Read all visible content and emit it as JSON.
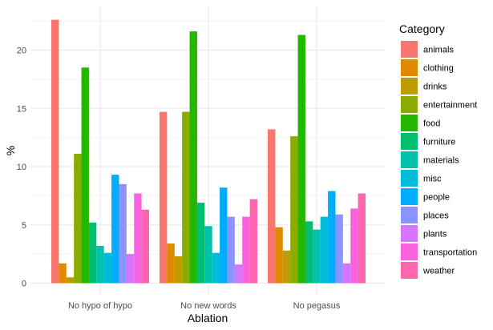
{
  "chart_data": {
    "type": "bar",
    "xlabel": "Ablation",
    "ylabel": "%",
    "ylim": [
      0,
      24
    ],
    "yticks": [
      0,
      5,
      10,
      15,
      20
    ],
    "grid": true,
    "legend_title": "Category",
    "legend_position": "right",
    "categories": [
      "No hypo of hypo",
      "No new words",
      "No pegasus"
    ],
    "series": [
      {
        "name": "animals",
        "color": "#F8766D",
        "values": [
          22.6,
          14.7,
          13.2
        ]
      },
      {
        "name": "clothing",
        "color": "#E18A00",
        "values": [
          1.7,
          3.4,
          4.8
        ]
      },
      {
        "name": "drinks",
        "color": "#BE9C00",
        "values": [
          0.5,
          2.3,
          2.8
        ]
      },
      {
        "name": "entertainment",
        "color": "#8CAB00",
        "values": [
          11.1,
          14.7,
          12.6
        ]
      },
      {
        "name": "food",
        "color": "#24B700",
        "values": [
          18.5,
          21.6,
          21.3
        ]
      },
      {
        "name": "furniture",
        "color": "#00BE70",
        "values": [
          5.2,
          6.9,
          5.3
        ]
      },
      {
        "name": "materials",
        "color": "#00C1AB",
        "values": [
          3.2,
          4.9,
          4.6
        ]
      },
      {
        "name": "misc",
        "color": "#00BBDA",
        "values": [
          2.6,
          2.6,
          5.7
        ]
      },
      {
        "name": "people",
        "color": "#00ACFC",
        "values": [
          9.3,
          8.2,
          7.9
        ]
      },
      {
        "name": "places",
        "color": "#8B93FF",
        "values": [
          8.5,
          5.7,
          5.9
        ]
      },
      {
        "name": "plants",
        "color": "#D575FE",
        "values": [
          2.5,
          1.6,
          1.7
        ]
      },
      {
        "name": "transportation",
        "color": "#F962DD",
        "values": [
          7.7,
          5.7,
          6.4
        ]
      },
      {
        "name": "weather",
        "color": "#FF65AC",
        "values": [
          6.3,
          7.2,
          7.7
        ]
      }
    ]
  }
}
